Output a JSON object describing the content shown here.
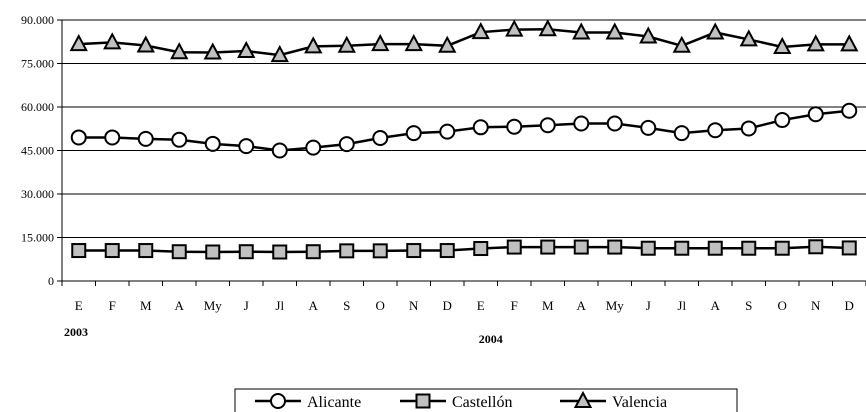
{
  "chart_data": {
    "type": "line",
    "title": "",
    "xlabel": "",
    "ylabel": "",
    "ylim": [
      0,
      90000
    ],
    "yticks": [
      0,
      15000,
      30000,
      45000,
      60000,
      75000,
      90000
    ],
    "ytick_labels": [
      "0",
      "15.000",
      "30.000",
      "45.000",
      "60.000",
      "75.000",
      "90.000"
    ],
    "grid": "horizontal",
    "legend_position": "bottom-center",
    "categories": [
      "E",
      "F",
      "M",
      "A",
      "My",
      "J",
      "Jl",
      "A",
      "S",
      "O",
      "N",
      "D",
      "E",
      "F",
      "M",
      "A",
      "My",
      "J",
      "Jl",
      "A",
      "S",
      "O",
      "N",
      "D"
    ],
    "year_labels": [
      {
        "label": "2003",
        "category_index": 0
      },
      {
        "label": "2004",
        "category_index": 12
      }
    ],
    "series": [
      {
        "name": "Alicante",
        "marker": "circle",
        "fill": "#ffffff",
        "values": [
          49500,
          49500,
          49000,
          48700,
          47300,
          46500,
          45000,
          46000,
          47200,
          49300,
          51000,
          51500,
          53000,
          53200,
          53700,
          54300,
          54300,
          52800,
          51000,
          52000,
          52600,
          55500,
          57500,
          58700
        ]
      },
      {
        "name": "Castellón",
        "marker": "square",
        "fill": "#c0c0c0",
        "values": [
          10500,
          10500,
          10500,
          10100,
          10000,
          10100,
          10000,
          10100,
          10400,
          10400,
          10500,
          10500,
          11200,
          11700,
          11700,
          11700,
          11700,
          11300,
          11300,
          11300,
          11300,
          11300,
          11800,
          11400
        ]
      },
      {
        "name": "Valencia",
        "marker": "triangle",
        "fill": "#c0c0c0",
        "values": [
          81700,
          82300,
          81200,
          78900,
          78800,
          79300,
          77900,
          80900,
          81100,
          81700,
          81700,
          81100,
          85800,
          86700,
          86800,
          85700,
          85700,
          84300,
          81100,
          85700,
          83300,
          80700,
          81600,
          81600
        ]
      }
    ]
  }
}
